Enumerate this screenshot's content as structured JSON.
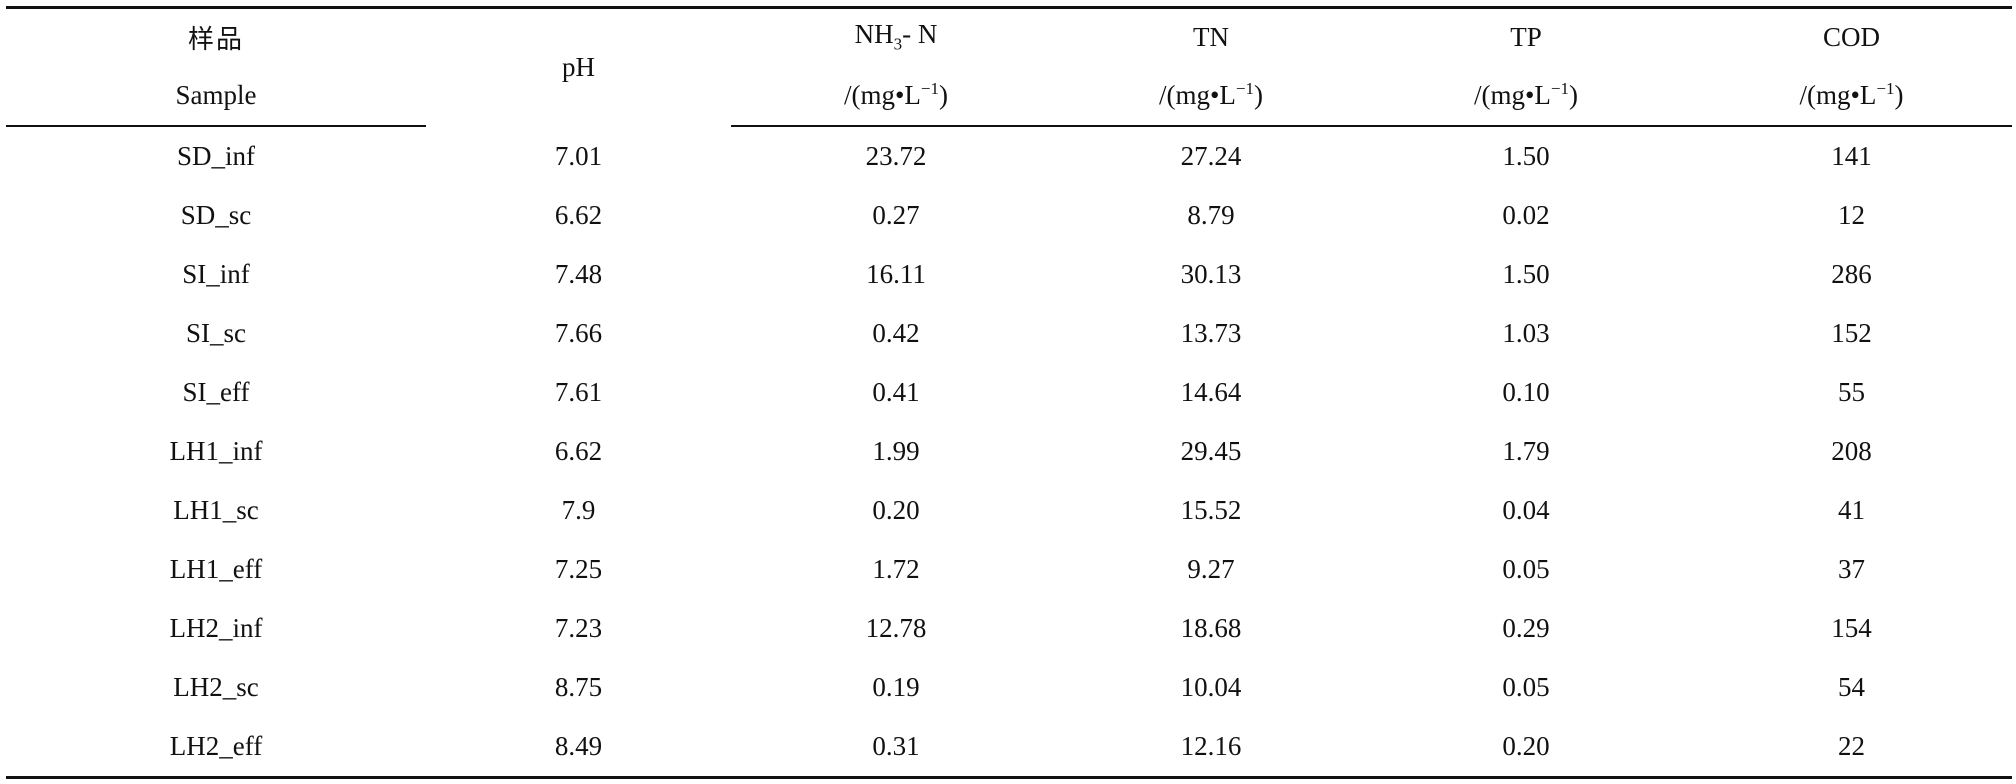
{
  "table": {
    "header": {
      "sample_cn": "样品",
      "sample_en": "Sample",
      "ph": "pH",
      "nh3_main": "NH",
      "nh3_sub": "3",
      "nh3_tail": "- N",
      "tn": "TN",
      "tp": "TP",
      "cod": "COD",
      "unit_pre": "/(mg",
      "unit_dot": "•",
      "unit_l": "L",
      "unit_sup": "−1",
      "unit_post": ")"
    },
    "rows": [
      [
        "SD_inf",
        "7.01",
        "23.72",
        "27.24",
        "1.50",
        "141"
      ],
      [
        "SD_sc",
        "6.62",
        "0.27",
        "8.79",
        "0.02",
        "12"
      ],
      [
        "SI_inf",
        "7.48",
        "16.11",
        "30.13",
        "1.50",
        "286"
      ],
      [
        "SI_sc",
        "7.66",
        "0.42",
        "13.73",
        "1.03",
        "152"
      ],
      [
        "SI_eff",
        "7.61",
        "0.41",
        "14.64",
        "0.10",
        "55"
      ],
      [
        "LH1_inf",
        "6.62",
        "1.99",
        "29.45",
        "1.79",
        "208"
      ],
      [
        "LH1_sc",
        "7.9",
        "0.20",
        "15.52",
        "0.04",
        "41"
      ],
      [
        "LH1_eff",
        "7.25",
        "1.72",
        "9.27",
        "0.05",
        "37"
      ],
      [
        "LH2_inf",
        "7.23",
        "12.78",
        "18.68",
        "0.29",
        "154"
      ],
      [
        "LH2_sc",
        "8.75",
        "0.19",
        "10.04",
        "0.05",
        "54"
      ],
      [
        "LH2_eff",
        "8.49",
        "0.31",
        "12.16",
        "0.20",
        "22"
      ]
    ]
  }
}
